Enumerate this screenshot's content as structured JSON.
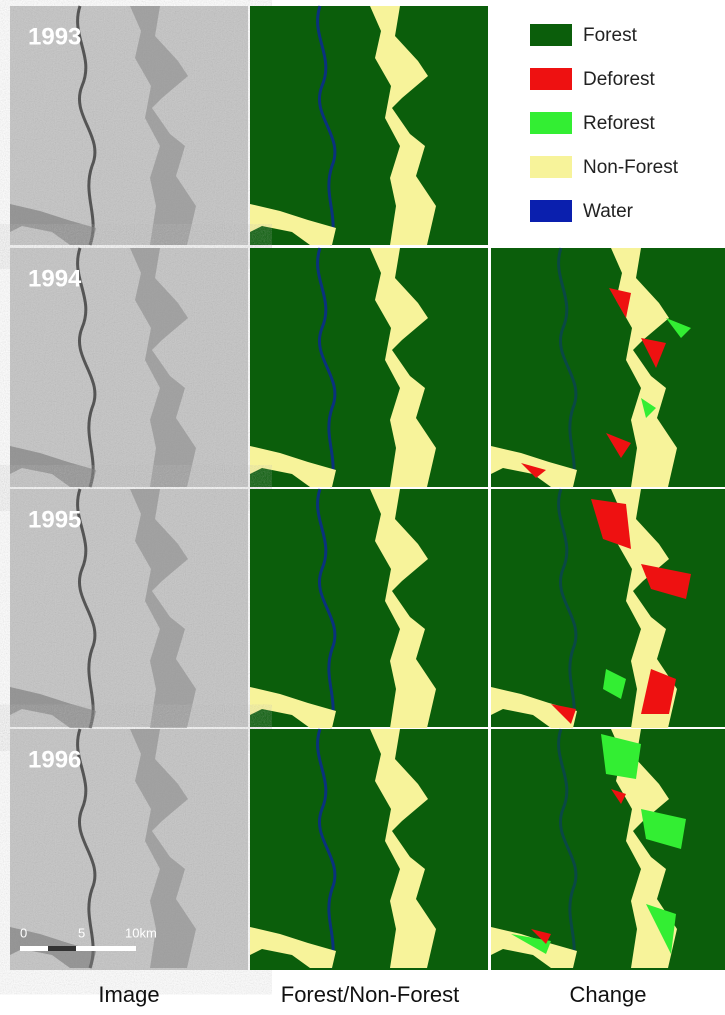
{
  "years": [
    "1993",
    "1994",
    "1995",
    "1996"
  ],
  "legend": [
    {
      "label": "Forest",
      "color": "#0b5e0b"
    },
    {
      "label": "Deforest",
      "color": "#ee1111"
    },
    {
      "label": "Reforest",
      "color": "#33ee33"
    },
    {
      "label": "Non-Forest",
      "color": "#f7f39a"
    },
    {
      "label": "Water",
      "color": "#0a1fae"
    }
  ],
  "columns": [
    "Image",
    "Forest/Non-Forest",
    "Change"
  ],
  "scale_bar": [
    "0",
    "5",
    "10km"
  ]
}
